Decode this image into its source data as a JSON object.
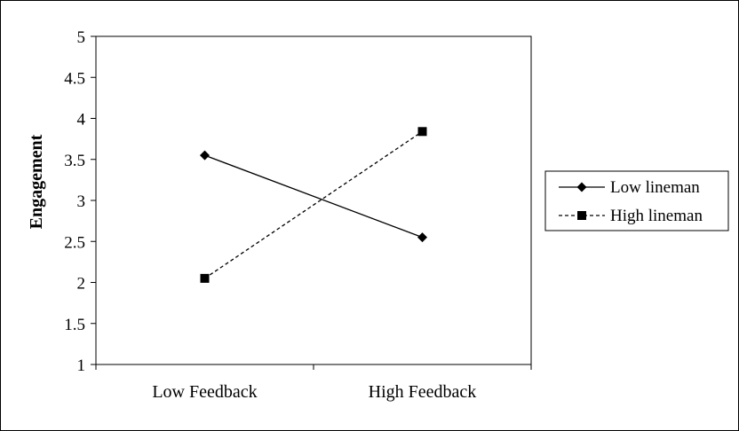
{
  "chart_data": {
    "type": "line",
    "title": "",
    "xlabel": "",
    "ylabel": "Engagement",
    "ylim": [
      1,
      5
    ],
    "yticks": [
      "1",
      "1.5",
      "2",
      "2.5",
      "3",
      "3.5",
      "4",
      "4.5",
      "5"
    ],
    "categories": [
      "Low Feedback",
      "High Feedback"
    ],
    "grid": false,
    "legend_position": "right",
    "series": [
      {
        "name": "Low lineman",
        "values": [
          3.55,
          2.55
        ],
        "marker": "diamond",
        "line": "solid",
        "color": "#000000"
      },
      {
        "name": "High lineman",
        "values": [
          2.05,
          3.84
        ],
        "marker": "square",
        "line": "dashed",
        "color": "#000000"
      }
    ]
  }
}
